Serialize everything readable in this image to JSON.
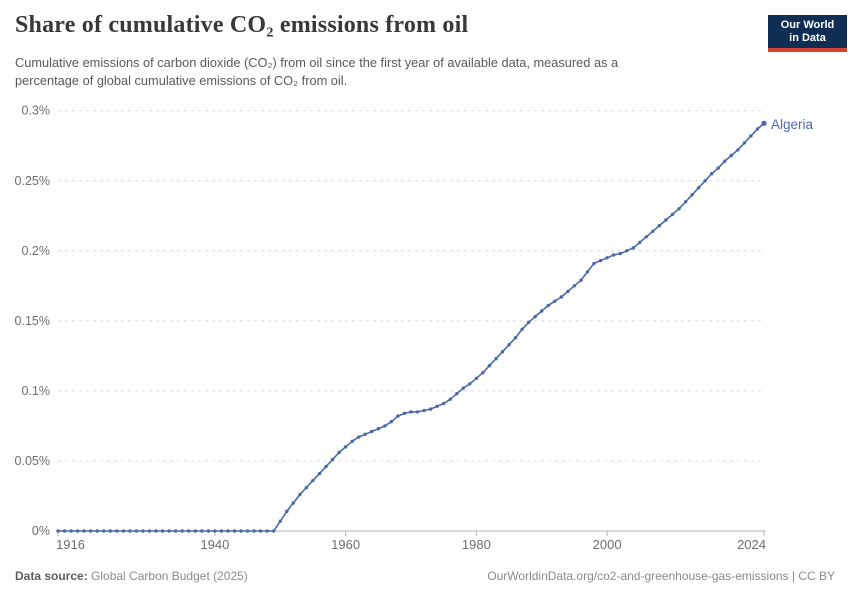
{
  "header": {
    "title": "Share of cumulative CO₂ emissions from oil",
    "subtitle_lines": [
      "Cumulative emissions of carbon dioxide (CO₂) from oil since the first year of available data, measured as a",
      "percentage of global cumulative emissions of CO₂ from oil."
    ],
    "logo_line1": "Our World",
    "logo_line2": "in Data",
    "logo_bg_color": "#102d54",
    "logo_accent_color": "#d7402d"
  },
  "footer": {
    "data_source_label": "Data source:",
    "data_source_value": " Global Carbon Budget (2025)",
    "link_text": "OurWorldinData.org/co2-and-greenhouse-gas-emissions | CC BY"
  },
  "chart_data": {
    "type": "line",
    "title": "Share of cumulative CO₂ emissions from oil",
    "xlabel": "",
    "ylabel": "",
    "grid": "dashed-horizontal",
    "legend_position": "end-of-line-label",
    "line_color": "#4a69a8",
    "grid_color": "#dcdcdc",
    "axis_color": "#b3b3b3",
    "tick_label_color": "#6e6e6e",
    "xlim": [
      1916,
      2024
    ],
    "ylim": [
      0,
      0.3
    ],
    "y_ticks": [
      {
        "value": 0.0,
        "label": "0%"
      },
      {
        "value": 0.05,
        "label": "0.05%"
      },
      {
        "value": 0.1,
        "label": "0.1%"
      },
      {
        "value": 0.15,
        "label": "0.15%"
      },
      {
        "value": 0.2,
        "label": "0.2%"
      },
      {
        "value": 0.25,
        "label": "0.25%"
      },
      {
        "value": 0.3,
        "label": "0.3%"
      }
    ],
    "x_ticks": [
      {
        "year": 1916,
        "label": "1916",
        "align": "start"
      },
      {
        "year": 1940,
        "label": "1940",
        "align": "middle"
      },
      {
        "year": 1960,
        "label": "1960",
        "align": "middle"
      },
      {
        "year": 1980,
        "label": "1980",
        "align": "middle"
      },
      {
        "year": 2000,
        "label": "2000",
        "align": "middle"
      },
      {
        "year": 2024,
        "label": "2024",
        "align": "end"
      }
    ],
    "series": [
      {
        "name": "Algeria",
        "unit": "%",
        "years": [
          1916,
          1917,
          1918,
          1919,
          1920,
          1921,
          1922,
          1923,
          1924,
          1925,
          1926,
          1927,
          1928,
          1929,
          1930,
          1931,
          1932,
          1933,
          1934,
          1935,
          1936,
          1937,
          1938,
          1939,
          1940,
          1941,
          1942,
          1943,
          1944,
          1945,
          1946,
          1947,
          1948,
          1949,
          1950,
          1951,
          1952,
          1953,
          1954,
          1955,
          1956,
          1957,
          1958,
          1959,
          1960,
          1961,
          1962,
          1963,
          1964,
          1965,
          1966,
          1967,
          1968,
          1969,
          1970,
          1971,
          1972,
          1973,
          1974,
          1975,
          1976,
          1977,
          1978,
          1979,
          1980,
          1981,
          1982,
          1983,
          1984,
          1985,
          1986,
          1987,
          1988,
          1989,
          1990,
          1991,
          1992,
          1993,
          1994,
          1995,
          1996,
          1997,
          1998,
          1999,
          2000,
          2001,
          2002,
          2003,
          2004,
          2005,
          2006,
          2007,
          2008,
          2009,
          2010,
          2011,
          2012,
          2013,
          2014,
          2015,
          2016,
          2017,
          2018,
          2019,
          2020,
          2021,
          2022,
          2023,
          2024
        ],
        "values": [
          0,
          0,
          0,
          0,
          0,
          0,
          0,
          0,
          0,
          0,
          0,
          0,
          0,
          0,
          0,
          0,
          0,
          0,
          0,
          0,
          0,
          0,
          0,
          0,
          0,
          0,
          0,
          0,
          0,
          0,
          0,
          0,
          0,
          0,
          0.007,
          0.014,
          0.02,
          0.026,
          0.031,
          0.036,
          0.041,
          0.046,
          0.051,
          0.056,
          0.06,
          0.064,
          0.067,
          0.069,
          0.071,
          0.073,
          0.075,
          0.078,
          0.082,
          0.084,
          0.085,
          0.085,
          0.086,
          0.087,
          0.089,
          0.091,
          0.094,
          0.098,
          0.102,
          0.105,
          0.109,
          0.113,
          0.118,
          0.123,
          0.128,
          0.133,
          0.138,
          0.144,
          0.149,
          0.153,
          0.157,
          0.161,
          0.164,
          0.167,
          0.171,
          0.175,
          0.179,
          0.185,
          0.191,
          0.193,
          0.195,
          0.197,
          0.198,
          0.2,
          0.202,
          0.206,
          0.21,
          0.214,
          0.218,
          0.222,
          0.226,
          0.23,
          0.235,
          0.24,
          0.245,
          0.25,
          0.255,
          0.259,
          0.264,
          0.268,
          0.272,
          0.277,
          0.282,
          0.287,
          0.291
        ]
      }
    ]
  }
}
